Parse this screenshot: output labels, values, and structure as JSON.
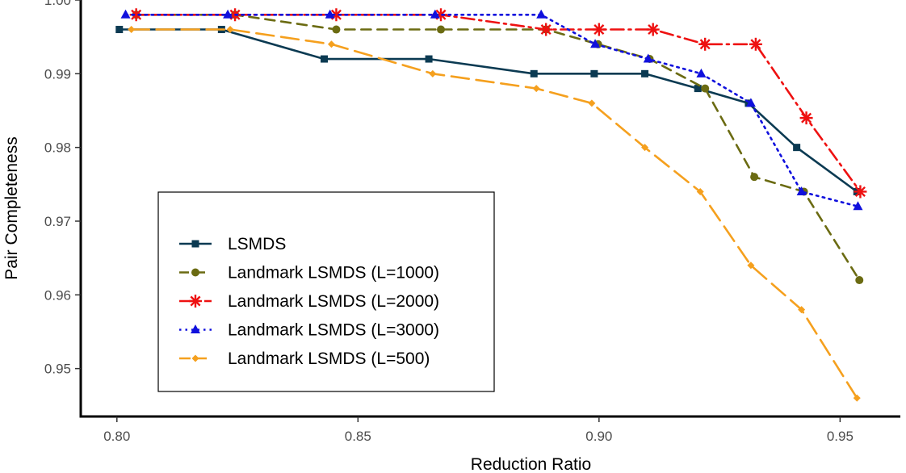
{
  "chart_data": {
    "type": "line",
    "xlabel": "Reduction Ratio",
    "ylabel": "Pair Completeness",
    "xlim": [
      0.7925,
      0.9625
    ],
    "ylim": [
      0.9435,
      1.0
    ],
    "xticks": [
      0.8,
      0.85,
      0.9,
      0.95
    ],
    "xtick_labels": [
      "0.80",
      "0.85",
      "0.90",
      "0.95"
    ],
    "yticks": [
      0.95,
      0.96,
      0.97,
      0.98,
      0.99,
      1.0
    ],
    "ytick_labels": [
      "0.95",
      "0.96",
      "0.97",
      "0.98",
      "0.99",
      "1.00"
    ],
    "grid": false,
    "legend_position": "bottom-left",
    "series": [
      {
        "name": "LSMDS",
        "color": "#0b3a52",
        "dash": "solid",
        "marker": "square",
        "x": [
          0.8005,
          0.8217,
          0.843,
          0.8647,
          0.8865,
          0.899,
          0.9095,
          0.9205,
          0.931,
          0.941,
          0.9535
        ],
        "y": [
          0.996,
          0.996,
          0.992,
          0.992,
          0.99,
          0.99,
          0.99,
          0.988,
          0.986,
          0.98,
          0.974
        ]
      },
      {
        "name": "Landmark LSMDS (L=1000)",
        "color": "#6b6b12",
        "dash": "dashed",
        "marker": "circle",
        "x": [
          0.804,
          0.8245,
          0.8455,
          0.8672,
          0.889,
          0.8998,
          0.9105,
          0.922,
          0.9322,
          0.9425,
          0.954
        ],
        "y": [
          0.998,
          0.998,
          0.996,
          0.996,
          0.996,
          0.994,
          0.992,
          0.988,
          0.976,
          0.974,
          0.962
        ]
      },
      {
        "name": "Landmark LSMDS (L=2000)",
        "color": "#ee1111",
        "dash": "dashdot",
        "marker": "star",
        "x": [
          0.804,
          0.8245,
          0.8455,
          0.8672,
          0.889,
          0.9,
          0.9112,
          0.922,
          0.9325,
          0.943,
          0.9542
        ],
        "y": [
          0.998,
          0.998,
          0.998,
          0.998,
          0.996,
          0.996,
          0.996,
          0.994,
          0.994,
          0.984,
          0.974
        ]
      },
      {
        "name": "Landmark LSMDS (L=3000)",
        "color": "#1010dd",
        "dash": "dotted",
        "marker": "triangle",
        "x": [
          0.8018,
          0.823,
          0.8442,
          0.866,
          0.888,
          0.8992,
          0.9102,
          0.9212,
          0.9315,
          0.942,
          0.9537
        ],
        "y": [
          0.998,
          0.998,
          0.998,
          0.998,
          0.998,
          0.994,
          0.992,
          0.99,
          0.986,
          0.974,
          0.972
        ]
      },
      {
        "name": "Landmark LSMDS (L=500)",
        "color": "#f5a01e",
        "dash": "longdash",
        "marker": "diamond",
        "x": [
          0.803,
          0.8235,
          0.8445,
          0.8655,
          0.887,
          0.8985,
          0.9095,
          0.921,
          0.9315,
          0.942,
          0.9535
        ],
        "y": [
          0.996,
          0.996,
          0.994,
          0.99,
          0.988,
          0.986,
          0.98,
          0.974,
          0.964,
          0.958,
          0.946
        ]
      }
    ]
  }
}
